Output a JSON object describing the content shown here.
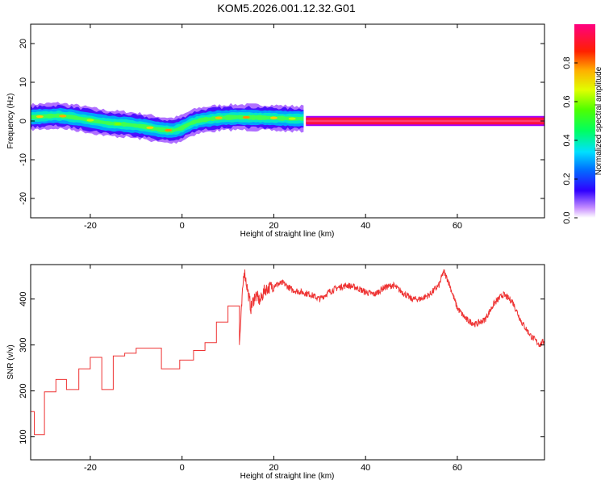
{
  "title": "KOM5.2026.001.12.32.G01",
  "chart_data": [
    {
      "type": "heatmap",
      "name": "spectrogram",
      "xlabel": "Height of straight line (km)",
      "ylabel": "Frequency (Hz)",
      "xlim": [
        -33,
        79
      ],
      "ylim": [
        -25,
        25
      ],
      "xticks": [
        -20,
        0,
        20,
        40,
        60
      ],
      "yticks": [
        -20,
        -10,
        0,
        10,
        20
      ],
      "ridge": {
        "x": [
          -33,
          -30,
          -27,
          -24,
          -20,
          -16,
          -12,
          -8,
          -5,
          -2,
          0,
          2,
          4,
          6,
          8,
          12,
          16,
          20,
          24,
          26.5
        ],
        "y": [
          1.0,
          1.2,
          1.4,
          1.0,
          0.2,
          -0.6,
          -0.9,
          -1.5,
          -2.2,
          -2.5,
          -1.8,
          -0.5,
          0.2,
          0.5,
          0.8,
          1.0,
          0.9,
          0.8,
          0.6,
          0.6
        ]
      },
      "constant_band": {
        "x": [
          27,
          79
        ],
        "y": 0
      },
      "colorbar": {
        "label": "Normalized spectral amplitude",
        "range": [
          0,
          1
        ],
        "ticks": [
          "0.0",
          "0.2",
          "0.4",
          "0.6",
          "0.8"
        ]
      }
    },
    {
      "type": "line",
      "name": "snr",
      "xlabel": "Height of straight line (km)",
      "ylabel": "SNR (v/v)",
      "xlim": [
        -33,
        79
      ],
      "ylim": [
        50,
        475
      ],
      "xticks": [
        -20,
        0,
        20,
        40,
        60
      ],
      "yticks": [
        100,
        200,
        300,
        400
      ],
      "color": "#ee3333",
      "steps": [
        [
          -33,
          155
        ],
        [
          -32.2,
          105
        ],
        [
          -30,
          198
        ],
        [
          -27.5,
          225
        ],
        [
          -25.2,
          203
        ],
        [
          -22.5,
          248
        ],
        [
          -20,
          273
        ],
        [
          -17.5,
          203
        ],
        [
          -15,
          276
        ],
        [
          -12.5,
          282
        ],
        [
          -10,
          293
        ],
        [
          -4.5,
          248
        ],
        [
          -0.5,
          267
        ],
        [
          2.5,
          288
        ],
        [
          5,
          305
        ],
        [
          7.5,
          350
        ],
        [
          10,
          385
        ],
        [
          12.5,
          300
        ]
      ],
      "curve_x": [
        12.5,
        13.5,
        15,
        16,
        17,
        18,
        20,
        22,
        24,
        26,
        28,
        30,
        32,
        34,
        36,
        38,
        40,
        42,
        44,
        46,
        48,
        50,
        52,
        54,
        56,
        57,
        58,
        60,
        62,
        64,
        66,
        68,
        70,
        72,
        74,
        76,
        78,
        79
      ],
      "curve_y": [
        300,
        465,
        380,
        410,
        395,
        420,
        430,
        435,
        420,
        415,
        410,
        400,
        415,
        425,
        430,
        425,
        415,
        410,
        425,
        430,
        415,
        400,
        400,
        410,
        430,
        460,
        440,
        380,
        355,
        345,
        355,
        390,
        410,
        395,
        350,
        320,
        300,
        310
      ]
    }
  ]
}
